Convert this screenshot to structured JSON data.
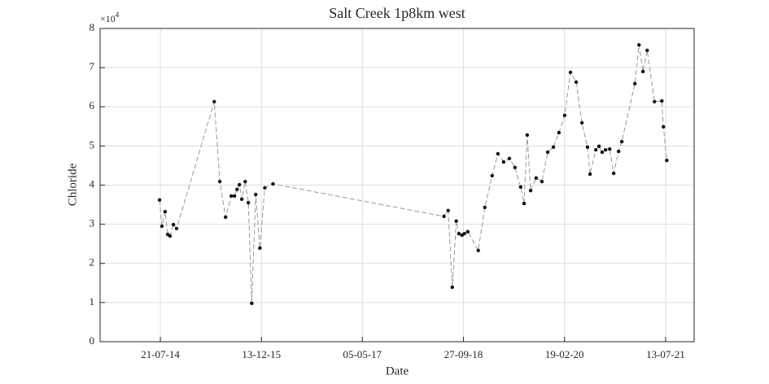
{
  "chart_data": {
    "type": "line",
    "title": "Salt Creek 1p8km west",
    "x_label": "Date",
    "y_label": "Chloride",
    "y_scale_label": {
      "base": "×10",
      "exponent": "4"
    },
    "x": [
      "2014-07-17",
      "2014-07-29",
      "2014-08-14",
      "2014-08-27",
      "2014-09-08",
      "2014-09-25",
      "2014-10-11",
      "2015-04-19",
      "2015-05-17",
      "2015-06-15",
      "2015-07-14",
      "2015-07-30",
      "2015-08-12",
      "2015-08-24",
      "2015-09-05",
      "2015-09-22",
      "2015-10-08",
      "2015-10-25",
      "2015-11-14",
      "2015-12-05",
      "2015-12-30",
      "2016-02-09",
      "2018-06-21",
      "2018-07-12",
      "2018-08-02",
      "2018-08-22",
      "2018-09-04",
      "2018-09-20",
      "2018-10-02",
      "2018-10-19",
      "2018-12-11",
      "2019-01-13",
      "2019-02-19",
      "2019-03-20",
      "2019-04-18",
      "2019-05-17",
      "2019-06-14",
      "2019-07-13",
      "2019-07-30",
      "2019-08-15",
      "2019-09-01",
      "2019-09-29",
      "2019-10-28",
      "2019-11-26",
      "2019-12-25",
      "2020-01-22",
      "2020-02-20",
      "2020-03-20",
      "2020-04-18",
      "2020-05-17",
      "2020-06-14",
      "2020-06-27",
      "2020-07-26",
      "2020-08-11",
      "2020-08-27",
      "2020-09-13",
      "2020-10-04",
      "2020-10-24",
      "2020-11-18",
      "2020-12-04",
      "2021-02-08",
      "2021-03-01",
      "2021-03-21",
      "2021-04-11",
      "2021-05-18",
      "2021-06-24",
      "2021-07-02",
      "2021-07-19"
    ],
    "values": [
      36200,
      29500,
      33200,
      27400,
      27000,
      29900,
      28900,
      61300,
      40900,
      31800,
      37200,
      37200,
      38900,
      40100,
      36400,
      40900,
      35500,
      9800,
      37600,
      23900,
      39300,
      40300,
      32000,
      33500,
      13900,
      30800,
      27600,
      27200,
      27600,
      28100,
      23300,
      34300,
      42400,
      48000,
      45900,
      46800,
      44500,
      39500,
      35300,
      52800,
      38600,
      41800,
      40900,
      48400,
      49700,
      53400,
      57800,
      68800,
      66300,
      55900,
      49700,
      42800,
      49000,
      49900,
      48400,
      49000,
      49200,
      43000,
      48600,
      51100,
      65900,
      75800,
      69000,
      74400,
      61300,
      61500,
      54900,
      46300
    ],
    "line_color": "#999999",
    "marker_color": "#111111",
    "xlim": [
      "2013-09-20",
      "2021-12-04"
    ],
    "xticks": [
      {
        "value": "2014-07-21",
        "label": "21-07-14"
      },
      {
        "value": "2015-12-13",
        "label": "13-12-15"
      },
      {
        "value": "2017-05-05",
        "label": "05-05-17"
      },
      {
        "value": "2018-09-27",
        "label": "27-09-18"
      },
      {
        "value": "2020-02-19",
        "label": "19-02-20"
      },
      {
        "value": "2021-07-13",
        "label": "13-07-21"
      }
    ],
    "ylim": [
      0,
      80000
    ],
    "yticks": [
      {
        "value": 0,
        "label": "0"
      },
      {
        "value": 10000,
        "label": "1"
      },
      {
        "value": 20000,
        "label": "2"
      },
      {
        "value": 30000,
        "label": "3"
      },
      {
        "value": 40000,
        "label": "4"
      },
      {
        "value": 50000,
        "label": "5"
      },
      {
        "value": 60000,
        "label": "6"
      },
      {
        "value": 70000,
        "label": "7"
      },
      {
        "value": 80000,
        "label": "8"
      }
    ],
    "grid": true
  }
}
